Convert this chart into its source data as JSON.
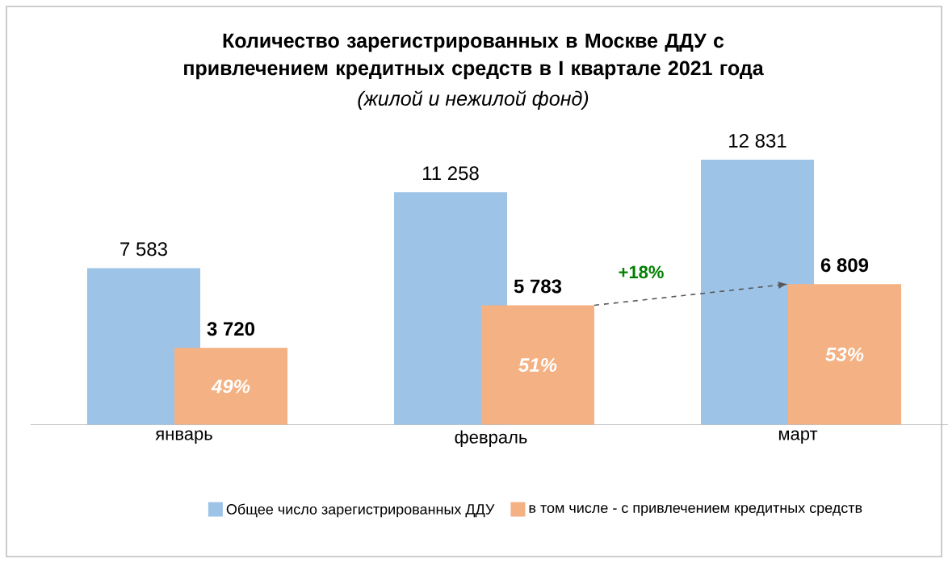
{
  "chart_data": {
    "type": "bar",
    "title": "Количество зарегистрированных в Москве ДДУ с привлечением кредитных средств в I квартале 2021 года",
    "subtitle": "(жилой и нежилой фонд)",
    "categories": [
      "январь",
      "февраль",
      "март"
    ],
    "series": [
      {
        "name": "Общее число зарегистрированных ДДУ",
        "color": "#9dc3e6",
        "values": [
          7583,
          11258,
          12831
        ],
        "value_labels": [
          "7 583",
          "11 258",
          "12 831"
        ]
      },
      {
        "name": "в том числе - с привлечением кредитных средств",
        "color": "#f4b183",
        "values": [
          3720,
          5783,
          6809
        ],
        "value_labels": [
          "3 720",
          "5 783",
          "6 809"
        ]
      }
    ],
    "legend": "bottom",
    "tick_labels": "x",
    "annotations": [
      "49%",
      "51%",
      "53%",
      "+18%"
    ]
  }
}
